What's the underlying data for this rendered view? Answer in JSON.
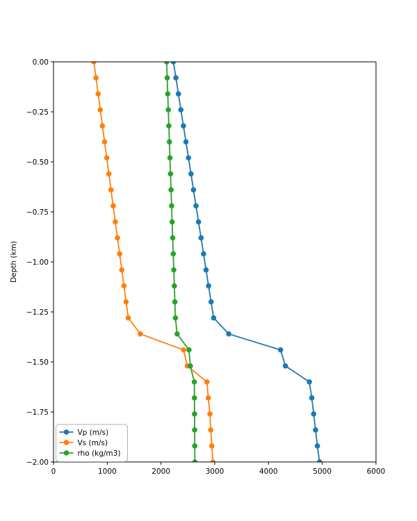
{
  "chart_data": {
    "type": "line",
    "title": "",
    "xlabel": "",
    "ylabel": "Depth (km)",
    "xlim": [
      0,
      6000
    ],
    "ylim": [
      -2.0,
      0.0
    ],
    "grid": false,
    "marker": "o",
    "x_ticks": [
      0,
      1000,
      2000,
      3000,
      4000,
      5000,
      6000
    ],
    "x_tick_labels": [
      "0",
      "1000",
      "2000",
      "3000",
      "4000",
      "5000",
      "6000"
    ],
    "y_ticks": [
      0.0,
      -0.25,
      -0.5,
      -0.75,
      -1.0,
      -1.25,
      -1.5,
      -1.75,
      -2.0
    ],
    "y_tick_labels": [
      "0.00",
      "−0.25",
      "−0.50",
      "−0.75",
      "−1.00",
      "−1.25",
      "−1.50",
      "−1.75",
      "−2.00"
    ],
    "depths_km": [
      0.0,
      -0.08,
      -0.16,
      -0.24,
      -0.32,
      -0.4,
      -0.48,
      -0.56,
      -0.64,
      -0.72,
      -0.8,
      -0.88,
      -0.96,
      -1.04,
      -1.12,
      -1.2,
      -1.28,
      -1.36,
      -1.44,
      -1.52,
      -1.6,
      -1.68,
      -1.76,
      -1.84,
      -1.92,
      -2.0
    ],
    "series": [
      {
        "name": "Vp (m/s)",
        "color": "#1f77b4",
        "values": [
          2230,
          2277,
          2324,
          2370,
          2417,
          2464,
          2511,
          2558,
          2604,
          2651,
          2698,
          2745,
          2792,
          2838,
          2885,
          2932,
          2979,
          3260,
          4225,
          4315,
          4760,
          4805,
          4840,
          4875,
          4910,
          4950
        ]
      },
      {
        "name": "Vs (m/s)",
        "color": "#ff7f0e",
        "values": [
          750,
          790,
          830,
          870,
          910,
          950,
          990,
          1030,
          1070,
          1110,
          1150,
          1190,
          1230,
          1270,
          1310,
          1350,
          1390,
          1615,
          2420,
          2490,
          2855,
          2880,
          2910,
          2925,
          2945,
          2965
        ]
      },
      {
        "name": "rho (kg/m3)",
        "color": "#2ca02c",
        "values": [
          2105,
          2115,
          2125,
          2136,
          2146,
          2156,
          2166,
          2177,
          2187,
          2197,
          2207,
          2217,
          2228,
          2238,
          2248,
          2258,
          2268,
          2300,
          2520,
          2545,
          2620,
          2622,
          2624,
          2626,
          2628,
          2630
        ]
      }
    ],
    "legend": {
      "position": "lower left",
      "entries": [
        "Vp (m/s)",
        "Vs (m/s)",
        "rho (kg/m3)"
      ]
    },
    "style": {
      "spine_color": "#000000",
      "tick_color": "#000000",
      "legend_border_color": "#b0b0b0",
      "legend_bg_color": "#ffffff",
      "background": "#ffffff"
    }
  }
}
